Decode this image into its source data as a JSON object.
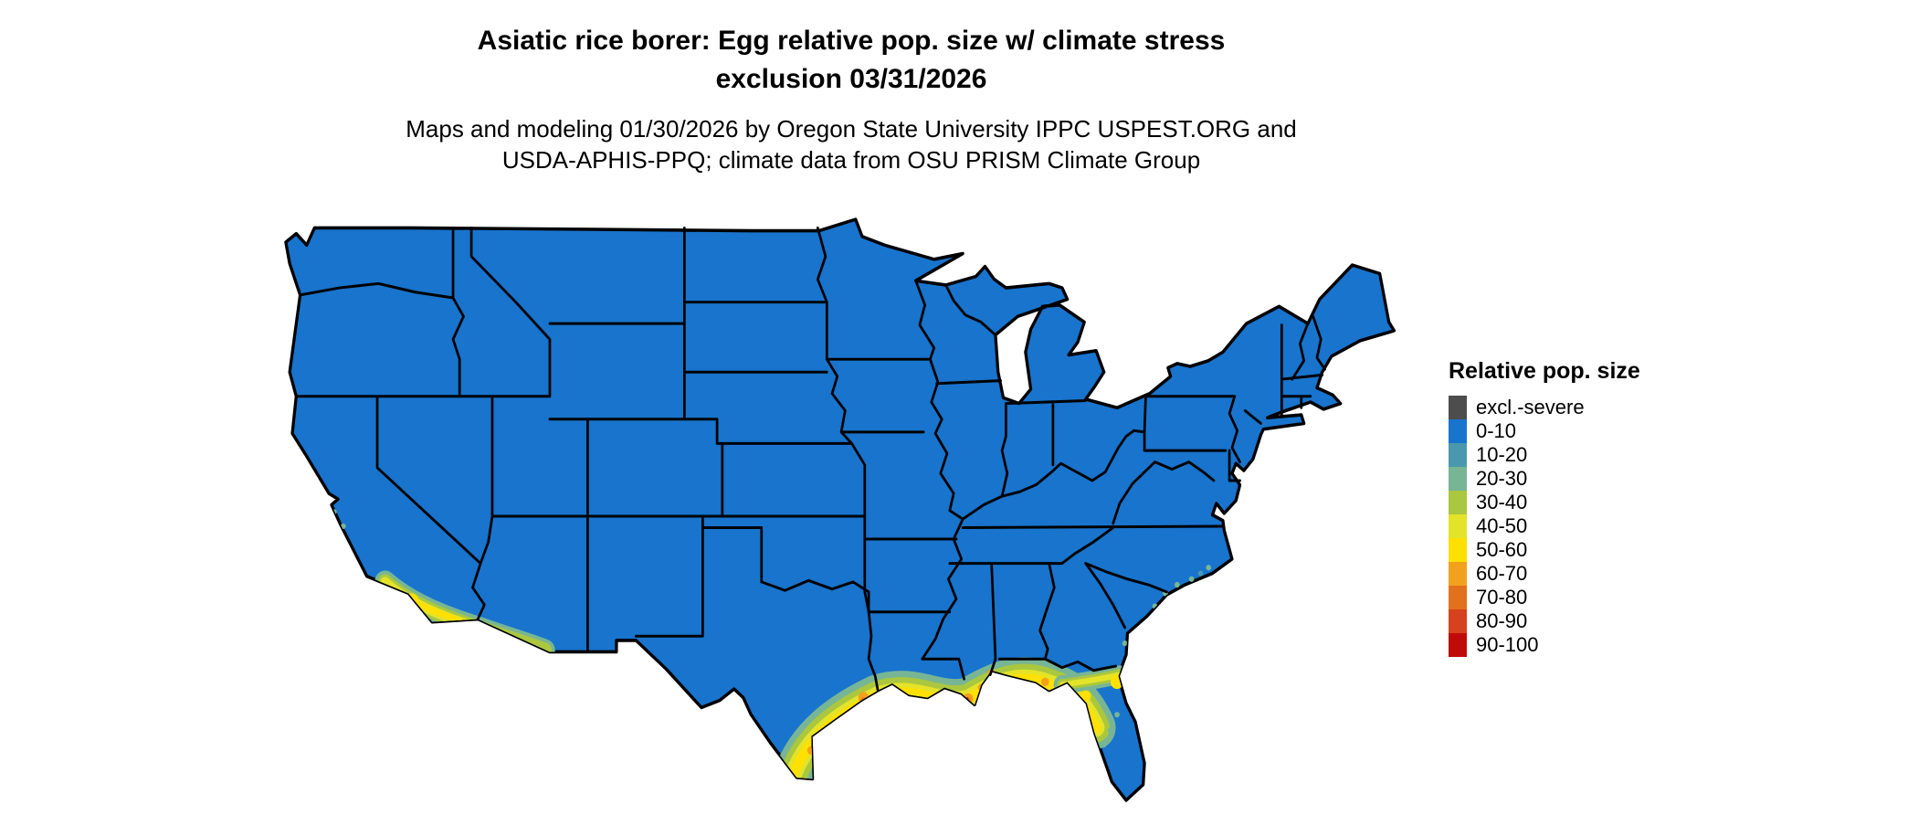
{
  "title": {
    "line1": "Asiatic rice borer: Egg relative pop. size w/ climate stress",
    "line2": "exclusion 03/31/2026"
  },
  "subtitle": {
    "line1": "Maps and modeling 01/30/2026 by Oregon State University IPPC USPEST.ORG and",
    "line2": "USDA-APHIS-PPQ; climate data from OSU PRISM Climate Group"
  },
  "legend": {
    "title": "Relative pop. size",
    "items": [
      {
        "label": "excl.-severe",
        "color": "#4d4d4d"
      },
      {
        "label": "0-10",
        "color": "#1874cd"
      },
      {
        "label": "10-20",
        "color": "#4a98ad"
      },
      {
        "label": "20-30",
        "color": "#77b595"
      },
      {
        "label": "30-40",
        "color": "#aac73f"
      },
      {
        "label": "40-50",
        "color": "#e3e32a"
      },
      {
        "label": "50-60",
        "color": "#ffe000"
      },
      {
        "label": "60-70",
        "color": "#f2a11d"
      },
      {
        "label": "70-80",
        "color": "#e2711d"
      },
      {
        "label": "80-90",
        "color": "#d6411e"
      },
      {
        "label": "90-100",
        "color": "#bf0a0a"
      }
    ]
  },
  "chart_data": {
    "type": "heatmap",
    "title": "Asiatic rice borer egg relative population size with climate stress exclusion, 03/31/2026",
    "legend_title": "Relative pop. size",
    "bins": [
      "excl.-severe",
      "0-10",
      "10-20",
      "20-30",
      "30-40",
      "40-50",
      "50-60",
      "60-70",
      "70-80",
      "80-90",
      "90-100"
    ],
    "dominant_bin": "0-10",
    "elevated_regions": [
      {
        "region": "Gulf Coast from south Texas through Louisiana, Mississippi and Alabama",
        "approx_range": "30-70"
      },
      {
        "region": "Florida panhandle and north Florida coast",
        "approx_range": "30-60"
      },
      {
        "region": "Southern California coast and Imperial Valley",
        "approx_range": "30-60"
      },
      {
        "region": "Southwestern Arizona (Yuma area)",
        "approx_range": "30-50"
      },
      {
        "region": "Coastal South Carolina and North Carolina (scattered)",
        "approx_range": "10-30"
      },
      {
        "region": "Central Florida peninsula (scattered)",
        "approx_range": "20-40"
      }
    ]
  }
}
